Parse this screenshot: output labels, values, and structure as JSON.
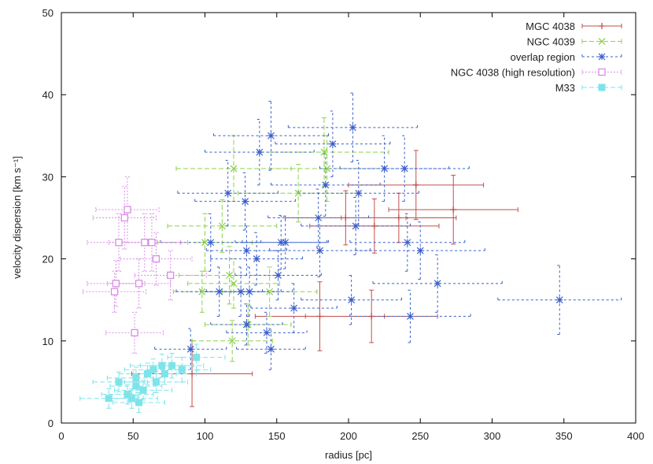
{
  "chart_data": {
    "type": "scatter",
    "title": "",
    "xlabel": "radius [pc]",
    "ylabel": "velocity dispersion [km s⁻¹]",
    "xlim": [
      0,
      400
    ],
    "ylim": [
      0,
      50
    ],
    "xticks": [
      0,
      50,
      100,
      150,
      200,
      250,
      300,
      350,
      400
    ],
    "yticks": [
      0,
      10,
      20,
      30,
      40,
      50
    ],
    "grid": false,
    "legend_position": "top-right",
    "series": [
      {
        "name": "MGC 4038",
        "marker": "plus",
        "color": "#c0504d",
        "dash": "solid",
        "points": [
          {
            "x": 91,
            "y": 6,
            "xerr": 42,
            "yerr": 4
          },
          {
            "x": 180,
            "y": 13,
            "xerr": 45,
            "yerr": 4.2
          },
          {
            "x": 216,
            "y": 13,
            "xerr": 46,
            "yerr": 3.2
          },
          {
            "x": 198,
            "y": 25,
            "xerr": 42,
            "yerr": 3.3
          },
          {
            "x": 218,
            "y": 24,
            "xerr": 45,
            "yerr": 3.3
          },
          {
            "x": 247,
            "y": 29,
            "xerr": 47,
            "yerr": 4.2
          },
          {
            "x": 273,
            "y": 26,
            "xerr": 45,
            "yerr": 4.2
          },
          {
            "x": 235,
            "y": 25,
            "xerr": 40,
            "yerr": 3
          }
        ]
      },
      {
        "name": "NGC 4039",
        "marker": "cross",
        "color": "#8fd14f",
        "dash": "6,3",
        "points": [
          {
            "x": 119,
            "y": 10,
            "xerr": 28,
            "yerr": 2.5
          },
          {
            "x": 117,
            "y": 18,
            "xerr": 35,
            "yerr": 3.5
          },
          {
            "x": 120,
            "y": 17,
            "xerr": 32,
            "yerr": 3
          },
          {
            "x": 112,
            "y": 24,
            "xerr": 38,
            "yerr": 3.2
          },
          {
            "x": 120,
            "y": 31,
            "xerr": 40,
            "yerr": 4
          },
          {
            "x": 165,
            "y": 28,
            "xerr": 42,
            "yerr": 3.5
          },
          {
            "x": 185,
            "y": 31,
            "xerr": 40,
            "yerr": 4
          },
          {
            "x": 183,
            "y": 33,
            "xerr": 45,
            "yerr": 4.2
          },
          {
            "x": 100,
            "y": 22,
            "xerr": 33,
            "yerr": 3.5
          },
          {
            "x": 145,
            "y": 16,
            "xerr": 33,
            "yerr": 3
          },
          {
            "x": 130,
            "y": 12,
            "xerr": 30,
            "yerr": 2.5
          },
          {
            "x": 98,
            "y": 16,
            "xerr": 20,
            "yerr": 2.5
          }
        ]
      },
      {
        "name": "overlap region",
        "marker": "star",
        "color": "#3a5fcd",
        "dash": "3,3",
        "points": [
          {
            "x": 90,
            "y": 9,
            "xerr": 25,
            "yerr": 2.5
          },
          {
            "x": 104,
            "y": 22,
            "xerr": 35,
            "yerr": 3.5
          },
          {
            "x": 110,
            "y": 16,
            "xerr": 30,
            "yerr": 3
          },
          {
            "x": 116,
            "y": 28,
            "xerr": 35,
            "yerr": 4
          },
          {
            "x": 125,
            "y": 16,
            "xerr": 28,
            "yerr": 3
          },
          {
            "x": 129,
            "y": 12,
            "xerr": 25,
            "yerr": 2.5
          },
          {
            "x": 129,
            "y": 21,
            "xerr": 28,
            "yerr": 3
          },
          {
            "x": 131,
            "y": 16,
            "xerr": 30,
            "yerr": 3
          },
          {
            "x": 128,
            "y": 27,
            "xerr": 35,
            "yerr": 3.5
          },
          {
            "x": 136,
            "y": 20,
            "xerr": 32,
            "yerr": 3.2
          },
          {
            "x": 138,
            "y": 33,
            "xerr": 38,
            "yerr": 4
          },
          {
            "x": 143,
            "y": 11,
            "xerr": 28,
            "yerr": 2.5
          },
          {
            "x": 146,
            "y": 35,
            "xerr": 40,
            "yerr": 4.2
          },
          {
            "x": 146,
            "y": 9,
            "xerr": 24,
            "yerr": 2.5
          },
          {
            "x": 151,
            "y": 18,
            "xerr": 30,
            "yerr": 3
          },
          {
            "x": 153,
            "y": 22,
            "xerr": 32,
            "yerr": 3.3
          },
          {
            "x": 156,
            "y": 22,
            "xerr": 30,
            "yerr": 3.2
          },
          {
            "x": 162,
            "y": 14,
            "xerr": 30,
            "yerr": 3
          },
          {
            "x": 179,
            "y": 25,
            "xerr": 35,
            "yerr": 3.5
          },
          {
            "x": 180,
            "y": 21,
            "xerr": 35,
            "yerr": 3.2
          },
          {
            "x": 184,
            "y": 29,
            "xerr": 38,
            "yerr": 3.8
          },
          {
            "x": 189,
            "y": 34,
            "xerr": 40,
            "yerr": 4
          },
          {
            "x": 202,
            "y": 15,
            "xerr": 35,
            "yerr": 3
          },
          {
            "x": 203,
            "y": 36,
            "xerr": 45,
            "yerr": 4.2
          },
          {
            "x": 205,
            "y": 24,
            "xerr": 38,
            "yerr": 3.5
          },
          {
            "x": 207,
            "y": 28,
            "xerr": 42,
            "yerr": 4
          },
          {
            "x": 225,
            "y": 31,
            "xerr": 45,
            "yerr": 4
          },
          {
            "x": 239,
            "y": 31,
            "xerr": 45,
            "yerr": 4
          },
          {
            "x": 241,
            "y": 22,
            "xerr": 40,
            "yerr": 3.5
          },
          {
            "x": 243,
            "y": 13,
            "xerr": 42,
            "yerr": 3.2
          },
          {
            "x": 250,
            "y": 21,
            "xerr": 45,
            "yerr": 3.5
          },
          {
            "x": 262,
            "y": 17,
            "xerr": 45,
            "yerr": 3.5
          },
          {
            "x": 347,
            "y": 15,
            "xerr": 43,
            "yerr": 4.2
          }
        ]
      },
      {
        "name": "NGC 4038 (high resolution)",
        "marker": "open-square",
        "color": "#d98ce6",
        "dash": "2,2",
        "points": [
          {
            "x": 37,
            "y": 16,
            "xerr": 22,
            "yerr": 2.5
          },
          {
            "x": 38,
            "y": 17,
            "xerr": 20,
            "yerr": 2.8
          },
          {
            "x": 40,
            "y": 22,
            "xerr": 22,
            "yerr": 3.5
          },
          {
            "x": 44,
            "y": 25,
            "xerr": 22,
            "yerr": 3.8
          },
          {
            "x": 46,
            "y": 26,
            "xerr": 22,
            "yerr": 4
          },
          {
            "x": 51,
            "y": 11,
            "xerr": 20,
            "yerr": 2.5
          },
          {
            "x": 54,
            "y": 17,
            "xerr": 22,
            "yerr": 3
          },
          {
            "x": 58,
            "y": 22,
            "xerr": 25,
            "yerr": 3.5
          },
          {
            "x": 63,
            "y": 22,
            "xerr": 25,
            "yerr": 3.5
          },
          {
            "x": 66,
            "y": 20,
            "xerr": 25,
            "yerr": 3.2
          },
          {
            "x": 76,
            "y": 18,
            "xerr": 25,
            "yerr": 3
          }
        ]
      },
      {
        "name": "M33",
        "marker": "filled-square",
        "color": "#7fe3ea",
        "dash": "6,3",
        "points": [
          {
            "x": 33,
            "y": 3,
            "xerr": 20,
            "yerr": 1.2
          },
          {
            "x": 40,
            "y": 5,
            "xerr": 18,
            "yerr": 1.2
          },
          {
            "x": 46,
            "y": 3.5,
            "xerr": 18,
            "yerr": 1.2
          },
          {
            "x": 49,
            "y": 3,
            "xerr": 18,
            "yerr": 1.2
          },
          {
            "x": 52,
            "y": 4.5,
            "xerr": 18,
            "yerr": 1.2
          },
          {
            "x": 52,
            "y": 5.5,
            "xerr": 20,
            "yerr": 1.3
          },
          {
            "x": 54,
            "y": 2.5,
            "xerr": 18,
            "yerr": 1.2
          },
          {
            "x": 57,
            "y": 4,
            "xerr": 20,
            "yerr": 1.2
          },
          {
            "x": 60,
            "y": 6,
            "xerr": 20,
            "yerr": 1.3
          },
          {
            "x": 64,
            "y": 6.5,
            "xerr": 20,
            "yerr": 1.3
          },
          {
            "x": 66,
            "y": 5,
            "xerr": 22,
            "yerr": 1.3
          },
          {
            "x": 70,
            "y": 7,
            "xerr": 22,
            "yerr": 1.4
          },
          {
            "x": 72,
            "y": 6,
            "xerr": 22,
            "yerr": 1.3
          },
          {
            "x": 77,
            "y": 7,
            "xerr": 22,
            "yerr": 1.5
          },
          {
            "x": 84,
            "y": 6.5,
            "xerr": 20,
            "yerr": 1.5
          },
          {
            "x": 94,
            "y": 8,
            "xerr": 20,
            "yerr": 1.6
          }
        ]
      }
    ]
  }
}
